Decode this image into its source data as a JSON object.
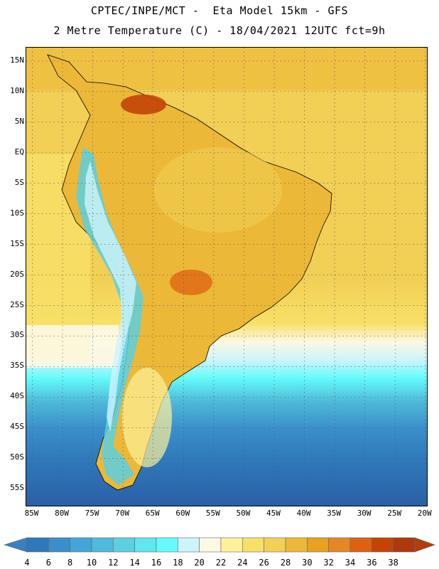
{
  "header": {
    "line1": "CPTEC/INPE/MCT -  Eta Model 15km - GFS",
    "line2": "2 Metre Temperature (C) - 18/04/2021 12UTC fct=9h"
  },
  "map": {
    "lon_range": [
      -86,
      -19.5
    ],
    "lat_range": [
      -58,
      17.2
    ],
    "lat_labels": [
      "15N",
      "10N",
      "5N",
      "EQ",
      "5S",
      "10S",
      "15S",
      "20S",
      "25S",
      "30S",
      "35S",
      "40S",
      "45S",
      "50S",
      "55S"
    ],
    "lat_values": [
      15,
      10,
      5,
      0,
      -5,
      -10,
      -15,
      -20,
      -25,
      -30,
      -35,
      -40,
      -45,
      -50,
      -55
    ],
    "lon_labels": [
      "85W",
      "80W",
      "75W",
      "70W",
      "65W",
      "60W",
      "55W",
      "50W",
      "45W",
      "40W",
      "35W",
      "30W",
      "25W",
      "20W"
    ],
    "lon_values": [
      -85,
      -80,
      -75,
      -70,
      -65,
      -60,
      -55,
      -50,
      -45,
      -40,
      -35,
      -30,
      -25,
      -20
    ]
  },
  "colorbar": {
    "labels": [
      "4",
      "6",
      "8",
      "10",
      "12",
      "14",
      "16",
      "18",
      "20",
      "22",
      "24",
      "26",
      "28",
      "30",
      "32",
      "34",
      "36",
      "38"
    ],
    "colors": [
      "#2a5fa7",
      "#2f78b9",
      "#3a8fca",
      "#43a6d6",
      "#4fbad9",
      "#5ccfe0",
      "#5fe6ee",
      "#63fbfb",
      "#cdf4fb",
      "#fdf8e3",
      "#fdf19a",
      "#f7e067",
      "#f2cf55",
      "#ecb837",
      "#e7a21f",
      "#e58724",
      "#de6112",
      "#c44407",
      "#ac3a0c"
    ],
    "low_color": "#3a7fc1",
    "high_color": "#b33d0e"
  }
}
